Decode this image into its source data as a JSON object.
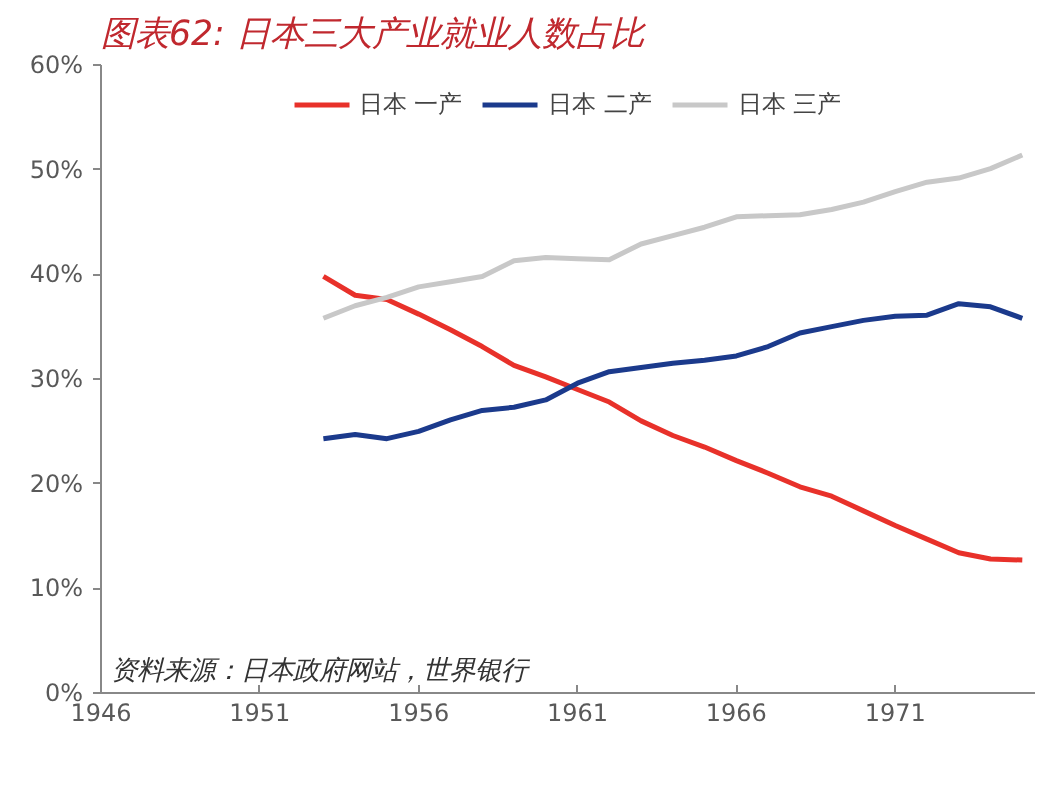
{
  "chart_data": {
    "type": "line",
    "title": "图表62: 日本三大产业就业人数占比",
    "annotations": [
      "资料来源：日本政府网站，世界银行"
    ],
    "x": [
      1953,
      1954,
      1955,
      1956,
      1957,
      1958,
      1959,
      1960,
      1961,
      1962,
      1963,
      1964,
      1965,
      1966,
      1967,
      1968,
      1969,
      1970,
      1971,
      1972,
      1973,
      1974,
      1975
    ],
    "series": [
      {
        "name": "日本 一产",
        "color": "#e8312a",
        "values": [
          39.8,
          38.0,
          37.6,
          36.2,
          34.7,
          33.1,
          31.3,
          30.2,
          29.0,
          27.8,
          26.0,
          24.6,
          23.5,
          22.2,
          21.0,
          19.7,
          18.8,
          17.4,
          16.0,
          14.7,
          13.4,
          12.8,
          12.7
        ]
      },
      {
        "name": "日本 二产",
        "color": "#1b3a8c",
        "values": [
          24.3,
          24.7,
          24.3,
          25.0,
          26.1,
          27.0,
          27.3,
          28.0,
          29.6,
          30.7,
          31.1,
          31.5,
          31.8,
          32.2,
          33.1,
          34.4,
          35.0,
          35.6,
          36.0,
          36.1,
          37.2,
          36.9,
          35.8
        ]
      },
      {
        "name": "日本 三产",
        "color": "#c8c8c8",
        "values": [
          35.8,
          37.0,
          37.8,
          38.8,
          39.3,
          39.8,
          41.3,
          41.6,
          41.5,
          41.4,
          42.9,
          43.7,
          44.5,
          45.5,
          45.6,
          45.7,
          46.2,
          46.9,
          47.9,
          48.8,
          49.2,
          50.1,
          51.4
        ]
      }
    ],
    "xlim": [
      1946,
      1975.4
    ],
    "xticks": [
      1946,
      1951,
      1956,
      1961,
      1966,
      1971
    ],
    "ylim": [
      0,
      60
    ],
    "yticks": [
      {
        "value": 0,
        "label": "0%"
      },
      {
        "value": 10,
        "label": "10%"
      },
      {
        "value": 20,
        "label": "20%"
      },
      {
        "value": 30,
        "label": "30%"
      },
      {
        "value": 40,
        "label": "40%"
      },
      {
        "value": 50,
        "label": "50%"
      },
      {
        "value": 60,
        "label": "60%"
      }
    ],
    "legend": "top",
    "grid": false,
    "marker": "none",
    "line_style": "solid"
  }
}
